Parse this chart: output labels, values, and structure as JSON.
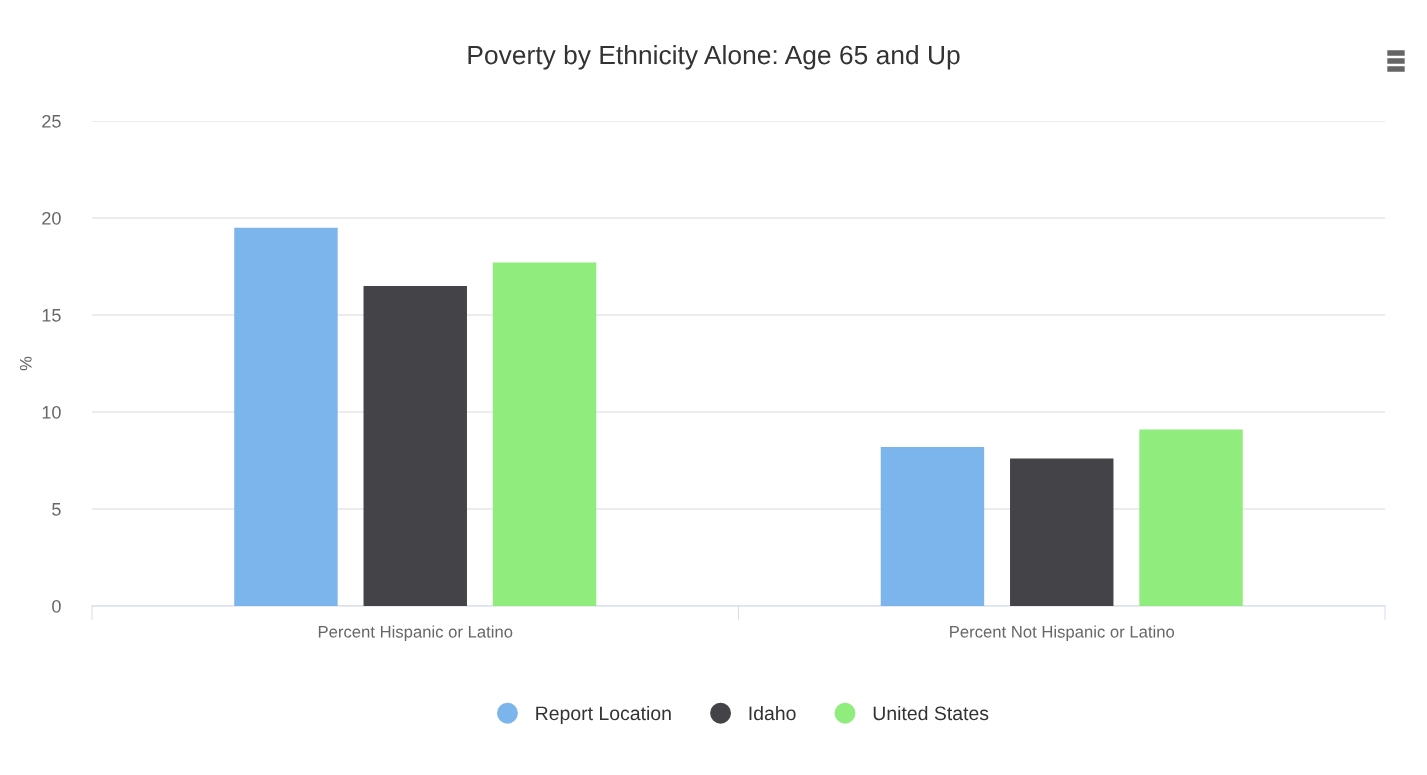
{
  "chart_data": {
    "type": "bar",
    "title": "Poverty by Ethnicity Alone: Age 65 and Up",
    "ylabel": "%",
    "categories": [
      "Percent Hispanic or Latino",
      "Percent Not Hispanic or Latino"
    ],
    "series": [
      {
        "name": "Report Location",
        "color": "#7cb5ec",
        "values": [
          19.5,
          8.2
        ]
      },
      {
        "name": "Idaho",
        "color": "#434348",
        "values": [
          16.5,
          7.6
        ]
      },
      {
        "name": "United States",
        "color": "#90ed7d",
        "values": [
          17.7,
          9.1
        ]
      }
    ],
    "ylim": [
      0,
      25
    ],
    "yticks": [
      0,
      5,
      10,
      15,
      20,
      25
    ],
    "grid": "y",
    "legend": "bottom"
  }
}
